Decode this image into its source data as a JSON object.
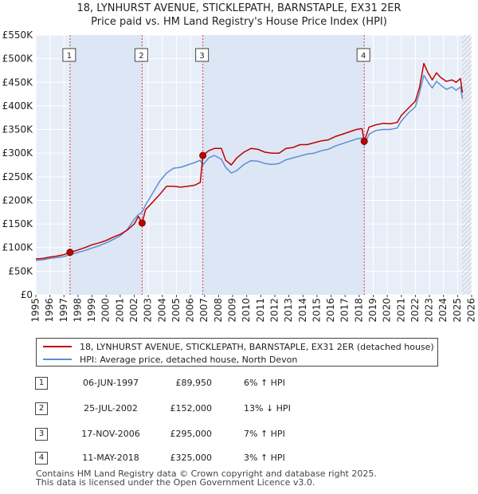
{
  "title_line1": "18, LYNHURST AVENUE, STICKLEPATH, BARNSTAPLE, EX31 2ER",
  "title_line2": "Price paid vs. HM Land Registry's House Price Index (HPI)",
  "colors": {
    "property_line": "#c00000",
    "hpi_line": "#5b8fd2",
    "shade": "#dde6f5",
    "marker_border": "#444444",
    "grid": "#ffffff",
    "plot_bg": "#e8eef8"
  },
  "chart_data": {
    "type": "line",
    "x_range": [
      1995.0,
      2026.0
    ],
    "ylim": [
      0,
      550000
    ],
    "y_ticks": [
      0,
      50000,
      100000,
      150000,
      200000,
      250000,
      300000,
      350000,
      400000,
      450000,
      500000,
      550000
    ],
    "y_tick_labels": [
      "£0",
      "£50K",
      "£100K",
      "£150K",
      "£200K",
      "£250K",
      "£300K",
      "£350K",
      "£400K",
      "£450K",
      "£500K",
      "£550K"
    ],
    "x_ticks": [
      1995,
      1996,
      1997,
      1998,
      1999,
      2000,
      2001,
      2002,
      2003,
      2004,
      2005,
      2006,
      2007,
      2008,
      2009,
      2010,
      2011,
      2012,
      2013,
      2014,
      2015,
      2016,
      2017,
      2018,
      2019,
      2020,
      2021,
      2022,
      2023,
      2024,
      2025,
      2026
    ],
    "x_tick_labels": [
      "1995",
      "1996",
      "1997",
      "1998",
      "1999",
      "2000",
      "2001",
      "2002",
      "2003",
      "2004",
      "2005",
      "2006",
      "2007",
      "2008",
      "2009",
      "2010",
      "2011",
      "2012",
      "2013",
      "2014",
      "2015",
      "2016",
      "2017",
      "2018",
      "2019",
      "2020",
      "2021",
      "2022",
      "2023",
      "2024",
      "2025",
      "2026"
    ],
    "shaded_ranges": [
      [
        1997.43,
        2002.56
      ],
      [
        2006.88,
        2018.36
      ]
    ],
    "hatched_from": 2025.3,
    "series": [
      {
        "name": "18, LYNHURST AVENUE, STICKLEPATH, BARNSTAPLE, EX31 2ER (detached house)",
        "color": "#c00000",
        "x": [
          1995.0,
          1995.5,
          1996.0,
          1996.5,
          1997.0,
          1997.43,
          1997.8,
          1998.5,
          1999.0,
          1999.5,
          2000.0,
          2000.5,
          2001.0,
          2001.5,
          2002.0,
          2002.3,
          2002.56,
          2002.8,
          2003.3,
          2003.8,
          2004.3,
          2004.8,
          2005.3,
          2005.8,
          2006.3,
          2006.7,
          2006.88,
          2007.3,
          2007.7,
          2008.2,
          2008.5,
          2008.9,
          2009.3,
          2009.8,
          2010.3,
          2010.8,
          2011.3,
          2011.8,
          2012.3,
          2012.8,
          2013.3,
          2013.8,
          2014.3,
          2014.8,
          2015.3,
          2015.8,
          2016.3,
          2016.8,
          2017.3,
          2017.8,
          2018.2,
          2018.36,
          2018.7,
          2019.2,
          2019.7,
          2020.2,
          2020.7,
          2021.0,
          2021.5,
          2022.0,
          2022.3,
          2022.6,
          2022.9,
          2023.2,
          2023.5,
          2023.8,
          2024.2,
          2024.6,
          2024.9,
          2025.2,
          2025.35
        ],
        "values": [
          76000,
          77000,
          80000,
          82000,
          85000,
          89950,
          93000,
          100000,
          106000,
          110000,
          115000,
          122000,
          128000,
          137000,
          150000,
          166000,
          152000,
          180000,
          196000,
          212000,
          230000,
          230000,
          228000,
          230000,
          232000,
          238000,
          295000,
          305000,
          310000,
          310000,
          285000,
          275000,
          290000,
          302000,
          310000,
          308000,
          302000,
          300000,
          300000,
          310000,
          312000,
          318000,
          318000,
          322000,
          326000,
          328000,
          335000,
          340000,
          345000,
          350000,
          352000,
          325000,
          355000,
          360000,
          363000,
          362000,
          365000,
          380000,
          395000,
          410000,
          440000,
          490000,
          470000,
          455000,
          470000,
          460000,
          452000,
          455000,
          450000,
          458000,
          428000
        ]
      },
      {
        "name": "HPI: Average price, detached house, North Devon",
        "color": "#5b8fd2",
        "x": [
          1995.0,
          1995.5,
          1996.0,
          1996.5,
          1997.0,
          1997.43,
          1997.8,
          1998.5,
          1999.0,
          1999.5,
          2000.0,
          2000.5,
          2001.0,
          2001.5,
          2002.0,
          2002.3,
          2002.56,
          2002.8,
          2003.3,
          2003.8,
          2004.3,
          2004.8,
          2005.3,
          2005.8,
          2006.3,
          2006.7,
          2006.88,
          2007.3,
          2007.7,
          2008.2,
          2008.5,
          2008.9,
          2009.3,
          2009.8,
          2010.3,
          2010.8,
          2011.3,
          2011.8,
          2012.3,
          2012.8,
          2013.3,
          2013.8,
          2014.3,
          2014.8,
          2015.3,
          2015.8,
          2016.3,
          2016.8,
          2017.3,
          2017.8,
          2018.2,
          2018.36,
          2018.7,
          2019.2,
          2019.7,
          2020.2,
          2020.7,
          2021.0,
          2021.5,
          2022.0,
          2022.3,
          2022.6,
          2022.9,
          2023.2,
          2023.5,
          2023.8,
          2024.2,
          2024.6,
          2024.9,
          2025.2,
          2025.35
        ],
        "values": [
          73000,
          74000,
          77000,
          79000,
          81000,
          85000,
          88000,
          94000,
          99000,
          104000,
          110000,
          117000,
          125000,
          138000,
          160000,
          170000,
          175000,
          190000,
          215000,
          240000,
          258000,
          268000,
          270000,
          275000,
          280000,
          285000,
          275000,
          290000,
          295000,
          287000,
          270000,
          258000,
          263000,
          276000,
          284000,
          283000,
          278000,
          276000,
          278000,
          286000,
          290000,
          294000,
          298000,
          300000,
          305000,
          308000,
          315000,
          320000,
          325000,
          330000,
          332000,
          316000,
          340000,
          348000,
          350000,
          350000,
          353000,
          368000,
          385000,
          398000,
          428000,
          465000,
          450000,
          438000,
          452000,
          444000,
          435000,
          440000,
          433000,
          440000,
          415000
        ]
      }
    ],
    "sale_markers": [
      {
        "label": "1",
        "x": 1997.43,
        "value": 89950
      },
      {
        "label": "2",
        "x": 2002.56,
        "value": 152000
      },
      {
        "label": "3",
        "x": 2006.88,
        "value": 295000
      },
      {
        "label": "4",
        "x": 2018.36,
        "value": 325000
      }
    ]
  },
  "legend": {
    "property_label": "18, LYNHURST AVENUE, STICKLEPATH, BARNSTAPLE, EX31 2ER (detached house)",
    "hpi_label": "HPI: Average price, detached house, North Devon"
  },
  "sales": [
    {
      "num": "1",
      "date": "06-JUN-1997",
      "price": "£89,950",
      "hpi": "6% ↑ HPI"
    },
    {
      "num": "2",
      "date": "25-JUL-2002",
      "price": "£152,000",
      "hpi": "13% ↓ HPI"
    },
    {
      "num": "3",
      "date": "17-NOV-2006",
      "price": "£295,000",
      "hpi": "7% ↑ HPI"
    },
    {
      "num": "4",
      "date": "11-MAY-2018",
      "price": "£325,000",
      "hpi": "3% ↑ HPI"
    }
  ],
  "footer": {
    "line1": "Contains HM Land Registry data © Crown copyright and database right 2025.",
    "line2": "This data is licensed under the Open Government Licence v3.0."
  }
}
